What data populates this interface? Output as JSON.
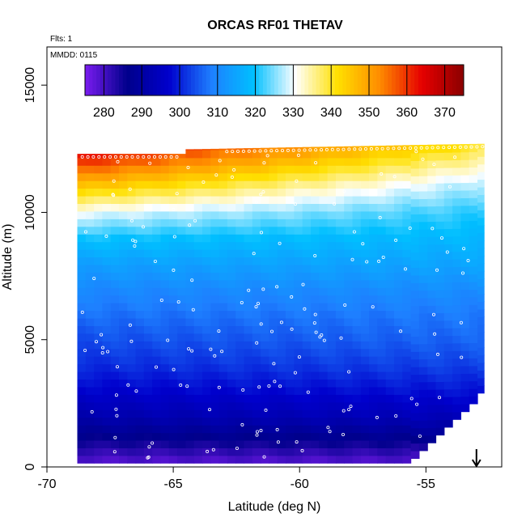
{
  "chart_data": {
    "type": "heatmap",
    "title": "ORCAS RF01 THETAV",
    "annotations": [
      "Flts: 1",
      "MMDD: 0115"
    ],
    "xlabel": "Latitude (deg N)",
    "ylabel": "Altitude (m)",
    "xlim": [
      -70,
      -52
    ],
    "ylim": [
      0,
      16500
    ],
    "x_ticks": [
      -70,
      -65,
      -60,
      -55
    ],
    "x_tick_labels": [
      "-70",
      "-65",
      "-60",
      "-55"
    ],
    "y_ticks": [
      0,
      5000,
      10000,
      15000
    ],
    "y_tick_labels": [
      "0",
      "5000",
      "10000",
      "15000"
    ],
    "grid": false,
    "legend": "colorbar inside plot, top",
    "colorbar": {
      "min": 275,
      "max": 375,
      "ticks": [
        280,
        290,
        300,
        310,
        320,
        330,
        340,
        350,
        360,
        370
      ],
      "tick_labels": [
        "280",
        "290",
        "300",
        "310",
        "320",
        "330",
        "340",
        "350",
        "360",
        "370"
      ],
      "colors": [
        "#7b1cf0",
        "#00008b",
        "#0000cd",
        "#1e7fff",
        "#00bfff",
        "#ffffff",
        "#ffe000",
        "#ff8c00",
        "#e60000",
        "#8b0000"
      ]
    },
    "data_extent": {
      "lat_min": -68.8,
      "lat_max": -52.7,
      "alt_min": 150,
      "alt_max_north": 12700,
      "alt_max_south": 12300
    },
    "marker": {
      "label": "arrow",
      "lat": -53.0,
      "alt_from": 700,
      "alt_to": 0
    },
    "thetav_profile": {
      "alt": [
        0,
        1000,
        2000,
        3000,
        4000,
        5000,
        6000,
        7000,
        8000,
        9000,
        10000,
        11000,
        12000,
        12700
      ],
      "value_south": [
        277,
        285,
        292,
        297,
        301,
        304,
        307,
        310,
        314,
        320,
        330,
        345,
        360,
        368
      ],
      "value_north": [
        277,
        286,
        294,
        299,
        303,
        306,
        308,
        311,
        315,
        318,
        321,
        326,
        334,
        340
      ]
    },
    "colors": {
      "background": "#ffffff",
      "axis": "#000000",
      "points": "#ffffff"
    }
  }
}
